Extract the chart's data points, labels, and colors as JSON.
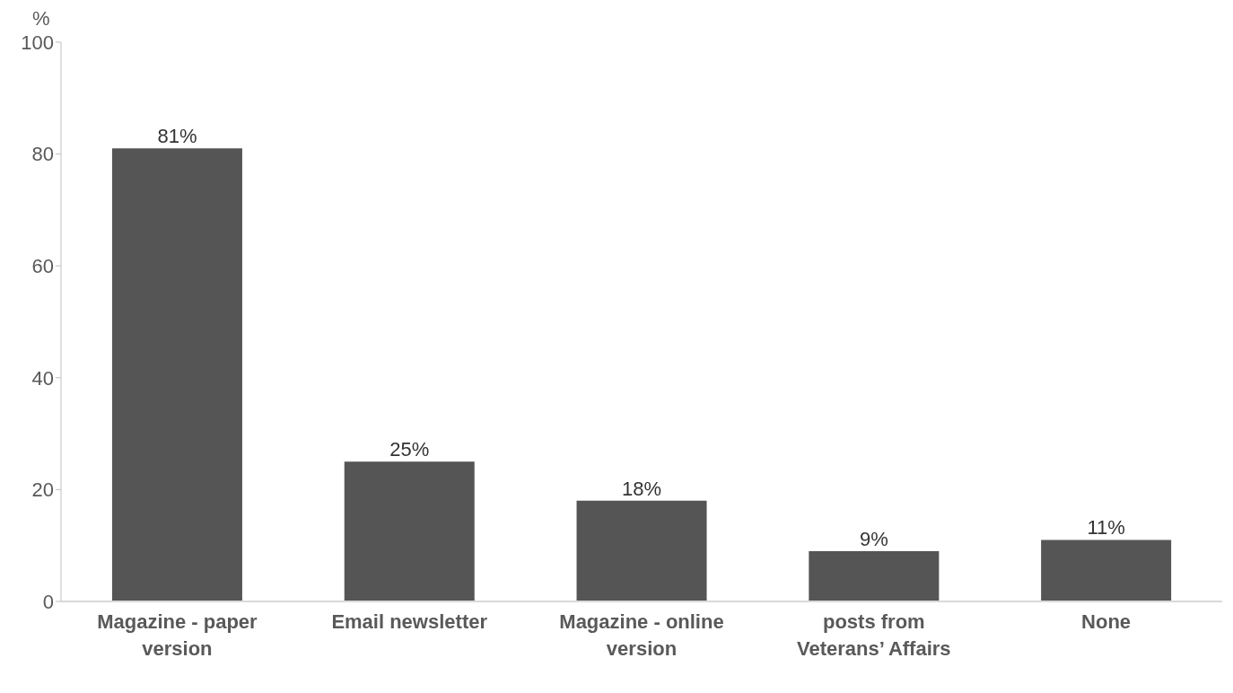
{
  "chart_data": {
    "type": "bar",
    "ylabel": "%",
    "categories": [
      "Magazine - paper version",
      "Email newsletter",
      "Magazine - online version",
      "posts from Veterans’ Affairs",
      "None"
    ],
    "values": [
      81,
      25,
      18,
      9,
      11
    ],
    "value_labels": [
      "81%",
      "25%",
      "18%",
      "9%",
      "11%"
    ],
    "color": "#555555",
    "ylim": [
      0,
      100
    ],
    "yticks": [
      0,
      20,
      40,
      60,
      80,
      100
    ],
    "grid": false,
    "legend": false
  }
}
